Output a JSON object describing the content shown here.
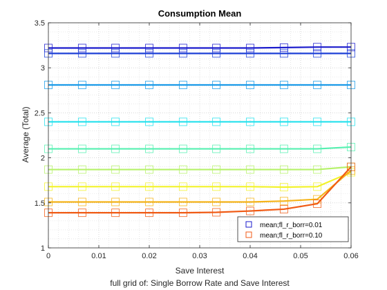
{
  "chart_data": {
    "type": "line",
    "title": "Consumption Mean",
    "xlabel": "Save Interest",
    "subtitle": "full grid of: Single Borrow Rate and Save Interest",
    "ylabel": "Average (Total)",
    "xlim": [
      0,
      0.06
    ],
    "ylim": [
      1,
      3.5
    ],
    "xticks": [
      0,
      0.01,
      0.02,
      0.03,
      0.04,
      0.05,
      0.06
    ],
    "xtick_labels": [
      "0",
      "0.01",
      "0.02",
      "0.03",
      "0.04",
      "0.05",
      "0.06"
    ],
    "yticks": [
      1,
      1.5,
      2,
      2.5,
      3,
      3.5
    ],
    "ytick_labels": [
      "1",
      "1.5",
      "2",
      "2.5",
      "3",
      "3.5"
    ],
    "grid": "dotted",
    "marker": "square",
    "legend_position": "bottom-right",
    "x": [
      0,
      0.0067,
      0.0133,
      0.02,
      0.0267,
      0.0333,
      0.04,
      0.0467,
      0.0533,
      0.06
    ],
    "series": [
      {
        "name": "mean;fl_r_borr=0.01",
        "color": "#1a1acc",
        "values": [
          3.22,
          3.22,
          3.22,
          3.22,
          3.22,
          3.22,
          3.22,
          3.225,
          3.23,
          3.23
        ]
      },
      {
        "name": "",
        "color": "#1c3fd6",
        "values": [
          3.16,
          3.16,
          3.16,
          3.16,
          3.16,
          3.16,
          3.16,
          3.16,
          3.16,
          3.16
        ]
      },
      {
        "name": "",
        "color": "#1a9ae8",
        "values": [
          2.81,
          2.81,
          2.81,
          2.81,
          2.81,
          2.81,
          2.81,
          2.81,
          2.81,
          2.81
        ]
      },
      {
        "name": "",
        "color": "#22e0ec",
        "values": [
          2.4,
          2.4,
          2.4,
          2.4,
          2.4,
          2.4,
          2.4,
          2.4,
          2.4,
          2.4
        ]
      },
      {
        "name": "",
        "color": "#55f0b0",
        "values": [
          2.1,
          2.1,
          2.1,
          2.1,
          2.1,
          2.1,
          2.1,
          2.1,
          2.1,
          2.12
        ]
      },
      {
        "name": "",
        "color": "#b6f26a",
        "values": [
          1.87,
          1.87,
          1.87,
          1.87,
          1.87,
          1.87,
          1.87,
          1.87,
          1.87,
          1.9
        ]
      },
      {
        "name": "",
        "color": "#f2f22a",
        "values": [
          1.68,
          1.68,
          1.68,
          1.68,
          1.68,
          1.68,
          1.68,
          1.675,
          1.68,
          1.84
        ]
      },
      {
        "name": "",
        "color": "#f5b41a",
        "values": [
          1.51,
          1.51,
          1.51,
          1.51,
          1.51,
          1.51,
          1.51,
          1.52,
          1.54,
          1.86
        ]
      },
      {
        "name": "mean;fl_r_borr=0.10",
        "color": "#f05a14",
        "values": [
          1.39,
          1.39,
          1.39,
          1.39,
          1.39,
          1.395,
          1.41,
          1.43,
          1.49,
          1.9
        ]
      }
    ]
  }
}
